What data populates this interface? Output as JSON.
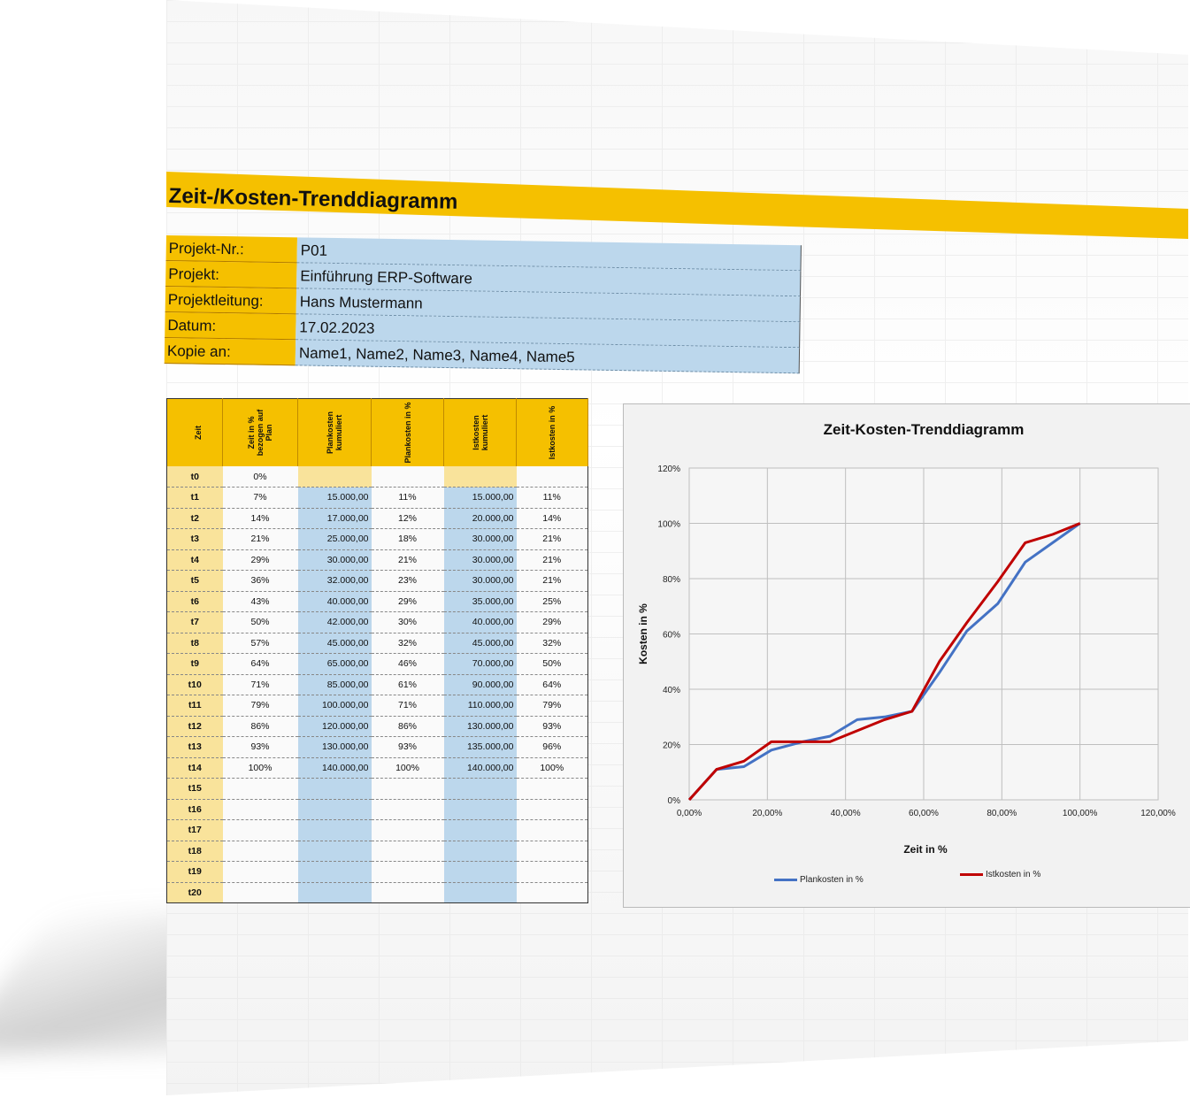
{
  "title": "Zeit-/Kosten-Trenddiagramm",
  "info": [
    {
      "label": "Projekt-Nr.:",
      "value": "P01"
    },
    {
      "label": "Projekt:",
      "value": "Einführung ERP-Software"
    },
    {
      "label": "Projektleitung:",
      "value": "Hans Mustermann"
    },
    {
      "label": "Datum:",
      "value": "17.02.2023"
    },
    {
      "label": "Kopie an:",
      "value": "Name1, Name2, Name3, Name4, Name5"
    }
  ],
  "table": {
    "headers": [
      "Zeit",
      "Zeit in % bezogen auf Plan",
      "Plankosten kumuliert",
      "Plankosten in %",
      "Istkosten kumuliert",
      "Istkosten in %"
    ],
    "rows": [
      [
        "t0",
        "0%",
        "",
        "",
        "",
        ""
      ],
      [
        "t1",
        "7%",
        "15.000,00",
        "11%",
        "15.000,00",
        "11%"
      ],
      [
        "t2",
        "14%",
        "17.000,00",
        "12%",
        "20.000,00",
        "14%"
      ],
      [
        "t3",
        "21%",
        "25.000,00",
        "18%",
        "30.000,00",
        "21%"
      ],
      [
        "t4",
        "29%",
        "30.000,00",
        "21%",
        "30.000,00",
        "21%"
      ],
      [
        "t5",
        "36%",
        "32.000,00",
        "23%",
        "30.000,00",
        "21%"
      ],
      [
        "t6",
        "43%",
        "40.000,00",
        "29%",
        "35.000,00",
        "25%"
      ],
      [
        "t7",
        "50%",
        "42.000,00",
        "30%",
        "40.000,00",
        "29%"
      ],
      [
        "t8",
        "57%",
        "45.000,00",
        "32%",
        "45.000,00",
        "32%"
      ],
      [
        "t9",
        "64%",
        "65.000,00",
        "46%",
        "70.000,00",
        "50%"
      ],
      [
        "t10",
        "71%",
        "85.000,00",
        "61%",
        "90.000,00",
        "64%"
      ],
      [
        "t11",
        "79%",
        "100.000,00",
        "71%",
        "110.000,00",
        "79%"
      ],
      [
        "t12",
        "86%",
        "120.000,00",
        "86%",
        "130.000,00",
        "93%"
      ],
      [
        "t13",
        "93%",
        "130.000,00",
        "93%",
        "135.000,00",
        "96%"
      ],
      [
        "t14",
        "100%",
        "140.000,00",
        "100%",
        "140.000,00",
        "100%"
      ],
      [
        "t15",
        "",
        "",
        "",
        "",
        ""
      ],
      [
        "t16",
        "",
        "",
        "",
        "",
        ""
      ],
      [
        "t17",
        "",
        "",
        "",
        "",
        ""
      ],
      [
        "t18",
        "",
        "",
        "",
        "",
        ""
      ],
      [
        "t19",
        "",
        "",
        "",
        "",
        ""
      ],
      [
        "t20",
        "",
        "",
        "",
        "",
        ""
      ]
    ]
  },
  "chart_data": {
    "type": "line",
    "title": "Zeit-Kosten-Trenddiagramm",
    "xlabel": "Zeit in %",
    "ylabel": "Kosten in %",
    "xlim": [
      0,
      1.2
    ],
    "ylim": [
      0,
      1.2
    ],
    "x_ticks": [
      "0,00%",
      "20,00%",
      "40,00%",
      "60,00%",
      "80,00%",
      "100,00%",
      "120,00%"
    ],
    "y_ticks": [
      "0%",
      "20%",
      "40%",
      "60%",
      "80%",
      "100%",
      "120%"
    ],
    "grid": true,
    "legend_position": "bottom",
    "x": [
      0,
      0.07,
      0.14,
      0.21,
      0.29,
      0.36,
      0.43,
      0.5,
      0.57,
      0.64,
      0.71,
      0.79,
      0.86,
      0.93,
      1.0
    ],
    "series": [
      {
        "name": "Plankosten in %",
        "color": "#4472c4",
        "values": [
          0,
          0.11,
          0.12,
          0.18,
          0.21,
          0.23,
          0.29,
          0.3,
          0.32,
          0.46,
          0.61,
          0.71,
          0.86,
          0.93,
          1.0
        ]
      },
      {
        "name": "Istkosten in %",
        "color": "#c00000",
        "values": [
          0,
          0.11,
          0.14,
          0.21,
          0.21,
          0.21,
          0.25,
          0.29,
          0.32,
          0.5,
          0.64,
          0.79,
          0.93,
          0.96,
          1.0
        ]
      }
    ]
  }
}
